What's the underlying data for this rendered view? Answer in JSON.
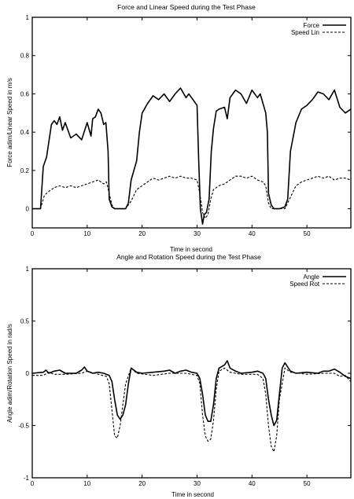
{
  "chart_data": [
    {
      "type": "line",
      "title": "Force and Linear Speed during the Test Phase",
      "xlabel": "Time in second",
      "ylabel": "Force adim/Linear Speed in m/s",
      "xlim": [
        0,
        58
      ],
      "ylim": [
        -0.1,
        1
      ],
      "xticks": [
        "0",
        "10",
        "20",
        "30",
        "40",
        "50"
      ],
      "yticks": [
        "0",
        "0.2",
        "0.4",
        "0.6",
        "0.8",
        "1"
      ],
      "legend": "top-right",
      "series": [
        {
          "name": "Force",
          "style": "solid",
          "x": [
            0,
            1.5,
            2,
            2.6,
            3.5,
            4,
            4.5,
            5,
            5.5,
            6,
            7,
            8,
            9,
            10,
            10.7,
            11,
            11.5,
            12,
            12.5,
            13,
            13.4,
            13.8,
            14,
            14.5,
            15,
            16,
            17,
            17.5,
            18,
            18.5,
            19,
            19.5,
            20,
            21,
            22,
            23,
            24,
            25,
            26,
            27,
            28,
            28.5,
            29,
            29.5,
            30,
            30.3,
            30.6,
            31,
            31.3,
            31.7,
            32.2,
            32.6,
            33,
            33.5,
            34,
            35,
            35.5,
            36,
            37,
            38,
            39,
            40,
            41,
            41.5,
            42,
            42.5,
            42.8,
            43,
            43.5,
            44,
            45,
            46,
            46.5,
            47,
            48,
            49,
            50,
            51,
            52,
            53,
            54,
            55,
            56,
            57,
            58
          ],
          "y": [
            0,
            0,
            0.22,
            0.27,
            0.44,
            0.46,
            0.44,
            0.48,
            0.41,
            0.45,
            0.37,
            0.39,
            0.36,
            0.45,
            0.38,
            0.47,
            0.48,
            0.52,
            0.5,
            0.44,
            0.45,
            0.3,
            0.05,
            0.01,
            0,
            0,
            0,
            0.03,
            0.15,
            0.2,
            0.25,
            0.4,
            0.5,
            0.55,
            0.59,
            0.57,
            0.6,
            0.56,
            0.6,
            0.63,
            0.58,
            0.6,
            0.58,
            0.56,
            0.54,
            0.25,
            0,
            -0.08,
            -0.03,
            -0.02,
            0.05,
            0.3,
            0.42,
            0.51,
            0.52,
            0.53,
            0.47,
            0.58,
            0.62,
            0.6,
            0.55,
            0.62,
            0.58,
            0.6,
            0.55,
            0.5,
            0.4,
            0.08,
            0.02,
            0,
            0,
            0.01,
            0.05,
            0.3,
            0.45,
            0.52,
            0.54,
            0.57,
            0.61,
            0.6,
            0.57,
            0.62,
            0.53,
            0.5,
            0.52
          ]
        },
        {
          "name": "Speed Lin",
          "style": "dashed",
          "x": [
            0,
            1.5,
            2.2,
            3,
            4,
            5,
            6,
            7,
            8,
            9,
            10,
            11,
            12,
            13,
            13.5,
            14,
            14.5,
            15,
            17,
            18,
            19,
            20,
            21,
            22,
            23,
            24,
            25,
            26,
            27,
            28,
            29,
            30,
            30.5,
            31,
            31.5,
            32,
            32.5,
            33,
            34,
            35,
            36,
            37,
            38,
            39,
            40,
            41,
            42,
            42.5,
            43,
            43.5,
            44,
            46,
            47,
            48,
            49,
            50,
            51,
            52,
            53,
            54,
            55,
            56,
            57,
            58
          ],
          "y": [
            0,
            0,
            0.07,
            0.09,
            0.11,
            0.12,
            0.11,
            0.12,
            0.11,
            0.12,
            0.13,
            0.14,
            0.15,
            0.13,
            0.14,
            0.08,
            0.02,
            0,
            0,
            0.04,
            0.1,
            0.12,
            0.14,
            0.16,
            0.15,
            0.16,
            0.17,
            0.16,
            0.17,
            0.16,
            0.16,
            0.15,
            0.08,
            -0.02,
            -0.05,
            -0.03,
            0.05,
            0.1,
            0.12,
            0.13,
            0.15,
            0.17,
            0.17,
            0.16,
            0.17,
            0.15,
            0.14,
            0.12,
            0.03,
            0,
            0,
            0,
            0.06,
            0.12,
            0.14,
            0.15,
            0.16,
            0.17,
            0.16,
            0.17,
            0.15,
            0.16,
            0.16,
            0.15
          ]
        }
      ]
    },
    {
      "type": "line",
      "title": "Angle and Rotation Speed during the Test Phase",
      "xlabel": "Time in second",
      "ylabel": "Angle adim/Rotation Speed in rad/s",
      "xlim": [
        0,
        58
      ],
      "ylim": [
        -1,
        1
      ],
      "xticks": [
        "0",
        "10",
        "20",
        "30",
        "40",
        "50"
      ],
      "yticks": [
        "-1",
        "-0.5",
        "0",
        "0.5",
        "1"
      ],
      "legend": "top-right",
      "series": [
        {
          "name": "Angle",
          "style": "solid",
          "x": [
            0,
            2,
            2.5,
            3,
            4,
            5,
            6,
            8,
            9,
            9.5,
            10,
            11,
            12,
            13,
            14,
            14.5,
            15,
            15.5,
            16,
            16.5,
            17,
            17.5,
            18,
            19,
            20,
            22,
            24,
            25,
            26,
            27,
            28,
            29,
            30,
            30.5,
            31,
            31.5,
            32,
            32.5,
            33,
            33.5,
            34,
            35,
            35.5,
            36,
            37,
            38,
            40,
            41,
            42,
            42.5,
            43,
            43.5,
            44,
            44.5,
            45,
            45.5,
            46,
            47,
            48,
            50,
            52,
            53,
            54,
            55,
            56,
            57,
            58
          ],
          "y": [
            0,
            0.01,
            0.03,
            0,
            0.02,
            0.03,
            0,
            0,
            0.03,
            0.06,
            0.02,
            0,
            0.01,
            0,
            -0.02,
            -0.08,
            -0.25,
            -0.4,
            -0.44,
            -0.4,
            -0.3,
            -0.1,
            0.05,
            0.01,
            0,
            0.01,
            0.02,
            0.03,
            0,
            0.02,
            0.03,
            0.01,
            0,
            -0.05,
            -0.2,
            -0.4,
            -0.46,
            -0.46,
            -0.3,
            -0.05,
            0.05,
            0.08,
            0.12,
            0.05,
            0.02,
            0,
            0.01,
            0.02,
            0,
            -0.05,
            -0.25,
            -0.4,
            -0.5,
            -0.45,
            -0.2,
            0.05,
            0.1,
            0.02,
            0,
            0.01,
            0,
            0.02,
            0.02,
            0.04,
            0.01,
            -0.03,
            -0.05
          ]
        },
        {
          "name": "Speed Rot",
          "style": "dashed",
          "x": [
            0,
            2,
            3,
            4,
            6,
            9,
            10,
            12,
            13.5,
            14,
            14.5,
            15,
            15.5,
            16,
            16.5,
            17,
            18,
            19,
            22,
            25,
            28,
            30,
            30.5,
            31,
            31.5,
            32,
            32.5,
            33,
            33.5,
            34,
            35,
            36,
            38,
            41,
            42,
            42.5,
            43,
            43.5,
            44,
            44.5,
            45,
            46,
            47,
            50,
            53,
            55,
            56,
            57,
            58
          ],
          "y": [
            -0.02,
            -0.02,
            0.01,
            -0.01,
            -0.01,
            0,
            0.02,
            -0.01,
            -0.03,
            -0.1,
            -0.35,
            -0.6,
            -0.62,
            -0.5,
            -0.3,
            -0.1,
            0.05,
            0,
            -0.02,
            0,
            0,
            -0.02,
            -0.1,
            -0.4,
            -0.6,
            -0.65,
            -0.63,
            -0.45,
            -0.15,
            0.02,
            0.05,
            0.01,
            -0.01,
            -0.01,
            -0.05,
            -0.2,
            -0.5,
            -0.7,
            -0.75,
            -0.6,
            -0.25,
            0.05,
            0.01,
            -0.01,
            0,
            0,
            -0.03,
            -0.02,
            -0.08
          ]
        }
      ]
    }
  ]
}
